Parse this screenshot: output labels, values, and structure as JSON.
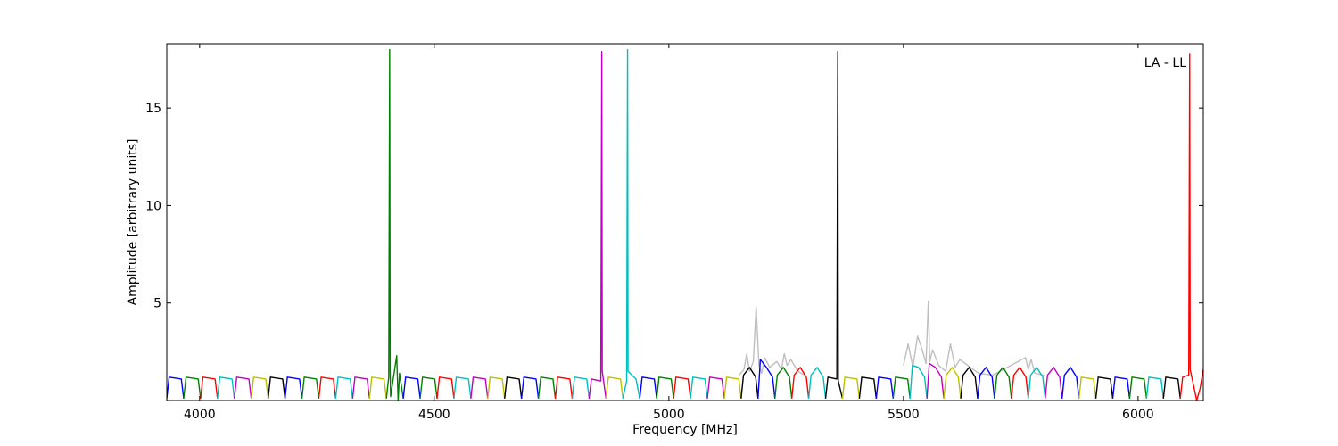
{
  "chart_data": {
    "type": "line",
    "xlabel": "Frequency [MHz]",
    "ylabel": "Amplitude [arbitrary units]",
    "annotation": "LA - LL",
    "xlim": [
      3930,
      6139
    ],
    "ylim": [
      0,
      18.3
    ],
    "xticks": [
      4000,
      4500,
      5000,
      5500,
      6000
    ],
    "yticks": [
      5,
      10,
      15
    ],
    "series": [
      {
        "color": "#bfbfbf",
        "x": [
          5150,
          5160,
          5166,
          5172,
          5180,
          5186,
          5192,
          5198,
          5204,
          5215,
          5230,
          5240,
          5246,
          5252,
          5260,
          5275,
          5290,
          5400,
          5500,
          5510,
          5520,
          5530,
          5540,
          5548,
          5553,
          5556,
          5562,
          5575,
          5590,
          5600,
          5610,
          5620,
          5660,
          5690,
          5760,
          5766,
          5772,
          5780,
          5800
        ],
        "values": [
          1.3,
          1.6,
          2.4,
          1.5,
          2.0,
          4.8,
          1.8,
          1.4,
          2.2,
          1.7,
          2.0,
          1.6,
          2.4,
          1.8,
          2.1,
          1.5,
          1.3,
          null,
          1.8,
          2.9,
          1.7,
          3.3,
          2.6,
          1.9,
          5.1,
          2.0,
          2.6,
          1.8,
          1.5,
          2.9,
          1.7,
          2.1,
          1.4,
          1.3,
          2.2,
          1.6,
          2.1,
          1.4,
          1.3
        ]
      },
      {
        "color": "#0000ff",
        "x": [
          3930,
          3935,
          3961,
          3966
        ],
        "values": [
          0.1,
          1.2,
          1.1,
          0.1
        ]
      },
      {
        "color": "#008000",
        "x": [
          3966,
          3971,
          3997,
          4002
        ],
        "values": [
          0.1,
          1.2,
          1.1,
          0.1
        ]
      },
      {
        "color": "#ff0000",
        "x": [
          4002,
          4007,
          4033,
          4038
        ],
        "values": [
          0.1,
          1.2,
          1.1,
          0.1
        ]
      },
      {
        "color": "#00bfbf",
        "x": [
          4038,
          4043,
          4069,
          4074
        ],
        "values": [
          0.1,
          1.2,
          1.1,
          0.1
        ]
      },
      {
        "color": "#bf00bf",
        "x": [
          4074,
          4079,
          4105,
          4110
        ],
        "values": [
          0.1,
          1.2,
          1.1,
          0.1
        ]
      },
      {
        "color": "#bfbf00",
        "x": [
          4110,
          4115,
          4141,
          4146
        ],
        "values": [
          0.1,
          1.2,
          1.1,
          0.1
        ]
      },
      {
        "color": "#000000",
        "x": [
          4146,
          4151,
          4177,
          4182
        ],
        "values": [
          0.1,
          1.2,
          1.1,
          0.1
        ]
      },
      {
        "color": "#0000ff",
        "x": [
          4182,
          4187,
          4213,
          4218
        ],
        "values": [
          0.1,
          1.2,
          1.1,
          0.1
        ]
      },
      {
        "color": "#008000",
        "x": [
          4218,
          4223,
          4249,
          4254
        ],
        "values": [
          0.1,
          1.2,
          1.1,
          0.1
        ]
      },
      {
        "color": "#ff0000",
        "x": [
          4254,
          4259,
          4285,
          4290
        ],
        "values": [
          0.1,
          1.2,
          1.1,
          0.1
        ]
      },
      {
        "color": "#00bfbf",
        "x": [
          4290,
          4295,
          4321,
          4326
        ],
        "values": [
          0.1,
          1.2,
          1.1,
          0.1
        ]
      },
      {
        "color": "#bf00bf",
        "x": [
          4326,
          4331,
          4357,
          4362
        ],
        "values": [
          0.1,
          1.2,
          1.1,
          0.1
        ]
      },
      {
        "color": "#bfbf00",
        "x": [
          4362,
          4367,
          4393,
          4398
        ],
        "values": [
          0.1,
          1.2,
          1.1,
          0.1
        ]
      },
      {
        "color": "#008000",
        "x": [
          4398,
          4403,
          4405,
          4406,
          4407,
          4420,
          4423,
          4426,
          4434
        ],
        "values": [
          0.1,
          1.2,
          18.0,
          1.5,
          0.2,
          2.3,
          0.0,
          1.4,
          0.1
        ]
      },
      {
        "color": "#0000ff",
        "x": [
          4434,
          4439,
          4465,
          4470
        ],
        "values": [
          0.1,
          1.2,
          1.1,
          0.1
        ]
      },
      {
        "color": "#008000",
        "x": [
          4470,
          4475,
          4501,
          4506
        ],
        "values": [
          0.1,
          1.2,
          1.1,
          0.1
        ]
      },
      {
        "color": "#ff0000",
        "x": [
          4506,
          4511,
          4537,
          4542
        ],
        "values": [
          0.1,
          1.2,
          1.1,
          0.1
        ]
      },
      {
        "color": "#00bfbf",
        "x": [
          4542,
          4547,
          4573,
          4578
        ],
        "values": [
          0.1,
          1.2,
          1.1,
          0.1
        ]
      },
      {
        "color": "#bf00bf",
        "x": [
          4578,
          4583,
          4609,
          4614
        ],
        "values": [
          0.1,
          1.2,
          1.1,
          0.1
        ]
      },
      {
        "color": "#bfbf00",
        "x": [
          4614,
          4619,
          4645,
          4650
        ],
        "values": [
          0.1,
          1.2,
          1.1,
          0.1
        ]
      },
      {
        "color": "#000000",
        "x": [
          4650,
          4655,
          4681,
          4686
        ],
        "values": [
          0.1,
          1.2,
          1.1,
          0.1
        ]
      },
      {
        "color": "#0000ff",
        "x": [
          4686,
          4691,
          4717,
          4722
        ],
        "values": [
          0.1,
          1.2,
          1.1,
          0.1
        ]
      },
      {
        "color": "#008000",
        "x": [
          4722,
          4727,
          4753,
          4758
        ],
        "values": [
          0.1,
          1.2,
          1.1,
          0.1
        ]
      },
      {
        "color": "#ff0000",
        "x": [
          4758,
          4763,
          4789,
          4794
        ],
        "values": [
          0.1,
          1.2,
          1.1,
          0.1
        ]
      },
      {
        "color": "#00bfbf",
        "x": [
          4794,
          4799,
          4825,
          4830
        ],
        "values": [
          0.1,
          1.2,
          1.1,
          0.1
        ]
      },
      {
        "color": "#bf00bf",
        "x": [
          4830,
          4835,
          4855,
          4857,
          4858,
          4866
        ],
        "values": [
          0.1,
          1.1,
          1.0,
          17.9,
          1.5,
          0.1
        ]
      },
      {
        "color": "#bfbf00",
        "x": [
          4866,
          4871,
          4897,
          4902
        ],
        "values": [
          0.1,
          1.2,
          1.1,
          0.1
        ]
      },
      {
        "color": "#00bfbf",
        "x": [
          4902,
          4910,
          4912,
          4913,
          4930,
          4938
        ],
        "values": [
          0.1,
          1.0,
          18.0,
          1.5,
          1.1,
          0.1
        ]
      },
      {
        "color": "#0000ff",
        "x": [
          4938,
          4943,
          4969,
          4974
        ],
        "values": [
          0.1,
          1.2,
          1.1,
          0.1
        ]
      },
      {
        "color": "#008000",
        "x": [
          4974,
          4979,
          5005,
          5010
        ],
        "values": [
          0.1,
          1.2,
          1.1,
          0.1
        ]
      },
      {
        "color": "#ff0000",
        "x": [
          5010,
          5015,
          5041,
          5046
        ],
        "values": [
          0.1,
          1.2,
          1.1,
          0.1
        ]
      },
      {
        "color": "#00bfbf",
        "x": [
          5046,
          5051,
          5077,
          5082
        ],
        "values": [
          0.1,
          1.2,
          1.1,
          0.1
        ]
      },
      {
        "color": "#bf00bf",
        "x": [
          5082,
          5087,
          5113,
          5118
        ],
        "values": [
          0.1,
          1.2,
          1.1,
          0.1
        ]
      },
      {
        "color": "#bfbf00",
        "x": [
          5118,
          5123,
          5149,
          5154
        ],
        "values": [
          0.1,
          1.2,
          1.1,
          0.1
        ]
      },
      {
        "color": "#000000",
        "x": [
          5154,
          5159,
          5172,
          5185,
          5190
        ],
        "values": [
          0.1,
          1.3,
          1.7,
          1.2,
          0.1
        ]
      },
      {
        "color": "#0000ff",
        "x": [
          5190,
          5195,
          5208,
          5221,
          5226
        ],
        "values": [
          0.1,
          2.1,
          1.7,
          1.2,
          0.1
        ]
      },
      {
        "color": "#008000",
        "x": [
          5226,
          5231,
          5244,
          5257,
          5262
        ],
        "values": [
          0.1,
          1.3,
          1.7,
          1.2,
          0.1
        ]
      },
      {
        "color": "#ff0000",
        "x": [
          5262,
          5267,
          5280,
          5293,
          5298
        ],
        "values": [
          0.1,
          1.3,
          1.7,
          1.2,
          0.1
        ]
      },
      {
        "color": "#00bfbf",
        "x": [
          5298,
          5303,
          5316,
          5329,
          5334
        ],
        "values": [
          0.1,
          1.3,
          1.7,
          1.2,
          0.1
        ]
      },
      {
        "color": "#000000",
        "x": [
          5334,
          5339,
          5358,
          5360,
          5361,
          5370
        ],
        "values": [
          0.1,
          1.2,
          1.1,
          17.9,
          1.0,
          0.1
        ]
      },
      {
        "color": "#bfbf00",
        "x": [
          5370,
          5375,
          5401,
          5406
        ],
        "values": [
          0.1,
          1.2,
          1.1,
          0.1
        ]
      },
      {
        "color": "#000000",
        "x": [
          5406,
          5411,
          5437,
          5442
        ],
        "values": [
          0.1,
          1.2,
          1.1,
          0.1
        ]
      },
      {
        "color": "#0000ff",
        "x": [
          5442,
          5447,
          5473,
          5478
        ],
        "values": [
          0.1,
          1.2,
          1.1,
          0.1
        ]
      },
      {
        "color": "#008000",
        "x": [
          5478,
          5483,
          5509,
          5514
        ],
        "values": [
          0.1,
          1.2,
          1.1,
          0.1
        ]
      },
      {
        "color": "#00bfbf",
        "x": [
          5514,
          5519,
          5532,
          5545,
          5550
        ],
        "values": [
          0.1,
          1.8,
          1.7,
          1.2,
          0.1
        ]
      },
      {
        "color": "#bf00bf",
        "x": [
          5550,
          5555,
          5568,
          5581,
          5586
        ],
        "values": [
          0.1,
          1.9,
          1.7,
          1.2,
          0.1
        ]
      },
      {
        "color": "#bfbf00",
        "x": [
          5586,
          5591,
          5604,
          5617,
          5622
        ],
        "values": [
          0.1,
          1.3,
          1.7,
          1.2,
          0.1
        ]
      },
      {
        "color": "#000000",
        "x": [
          5622,
          5627,
          5640,
          5653,
          5658
        ],
        "values": [
          0.1,
          1.3,
          1.7,
          1.2,
          0.1
        ]
      },
      {
        "color": "#0000ff",
        "x": [
          5658,
          5663,
          5676,
          5689,
          5694
        ],
        "values": [
          0.1,
          1.3,
          1.7,
          1.2,
          0.1
        ]
      },
      {
        "color": "#008000",
        "x": [
          5694,
          5699,
          5712,
          5725,
          5730
        ],
        "values": [
          0.1,
          1.3,
          1.7,
          1.2,
          0.1
        ]
      },
      {
        "color": "#ff0000",
        "x": [
          5730,
          5735,
          5748,
          5761,
          5766
        ],
        "values": [
          0.1,
          1.3,
          1.7,
          1.2,
          0.1
        ]
      },
      {
        "color": "#00bfbf",
        "x": [
          5766,
          5771,
          5784,
          5797,
          5802
        ],
        "values": [
          0.1,
          1.3,
          1.7,
          1.2,
          0.1
        ]
      },
      {
        "color": "#bf00bf",
        "x": [
          5802,
          5807,
          5820,
          5833,
          5838
        ],
        "values": [
          0.1,
          1.3,
          1.7,
          1.2,
          0.1
        ]
      },
      {
        "color": "#0000ff",
        "x": [
          5838,
          5843,
          5856,
          5869,
          5874
        ],
        "values": [
          0.1,
          1.3,
          1.7,
          1.2,
          0.1
        ]
      },
      {
        "color": "#bfbf00",
        "x": [
          5874,
          5879,
          5905,
          5910
        ],
        "values": [
          0.1,
          1.2,
          1.1,
          0.1
        ]
      },
      {
        "color": "#000000",
        "x": [
          5910,
          5915,
          5941,
          5946
        ],
        "values": [
          0.1,
          1.2,
          1.1,
          0.1
        ]
      },
      {
        "color": "#0000ff",
        "x": [
          5946,
          5951,
          5977,
          5982
        ],
        "values": [
          0.1,
          1.2,
          1.1,
          0.1
        ]
      },
      {
        "color": "#008000",
        "x": [
          5982,
          5987,
          6013,
          6018
        ],
        "values": [
          0.1,
          1.2,
          1.1,
          0.1
        ]
      },
      {
        "color": "#00bfbf",
        "x": [
          6018,
          6023,
          6049,
          6054
        ],
        "values": [
          0.1,
          1.2,
          1.1,
          0.1
        ]
      },
      {
        "color": "#000000",
        "x": [
          6054,
          6059,
          6085,
          6090
        ],
        "values": [
          0.1,
          1.2,
          1.1,
          0.1
        ]
      },
      {
        "color": "#ff0000",
        "x": [
          6090,
          6095,
          6108,
          6110,
          6111,
          6125,
          6132,
          6139
        ],
        "values": [
          0.1,
          1.2,
          1.3,
          17.8,
          1.6,
          0.0,
          0.6,
          1.6
        ]
      }
    ]
  }
}
